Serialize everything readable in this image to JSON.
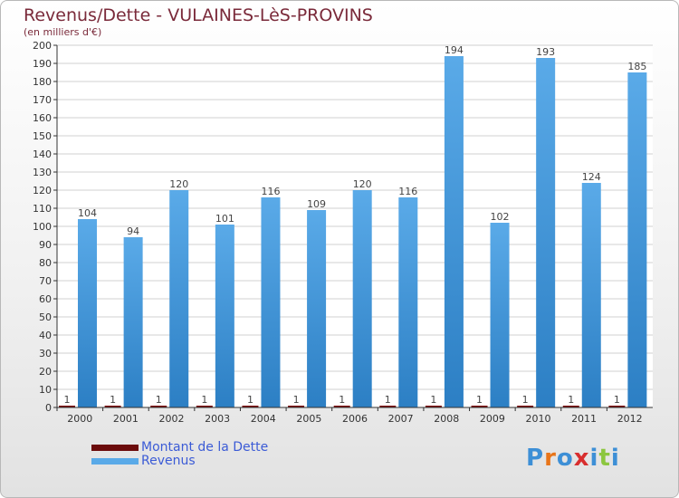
{
  "chart_data": {
    "type": "bar",
    "title": "Revenus/Dette - VULAINES-LèS-PROVINS",
    "subtitle": "(en milliers d'€)",
    "categories": [
      "2000",
      "2001",
      "2002",
      "2003",
      "2004",
      "2005",
      "2006",
      "2007",
      "2008",
      "2009",
      "2010",
      "2011",
      "2012"
    ],
    "series": [
      {
        "name": "Montant de la Dette",
        "color": "#6b0b0b",
        "values": [
          1,
          1,
          1,
          1,
          1,
          1,
          1,
          1,
          1,
          1,
          1,
          1,
          1
        ]
      },
      {
        "name": "Revenus",
        "color": "#5aaae8",
        "values": [
          104,
          94,
          120,
          101,
          116,
          109,
          120,
          116,
          194,
          102,
          193,
          124,
          185
        ]
      }
    ],
    "ylim": [
      0,
      200
    ],
    "yticks": [
      0,
      10,
      20,
      30,
      40,
      50,
      60,
      70,
      80,
      90,
      100,
      110,
      120,
      130,
      140,
      150,
      160,
      170,
      180,
      190,
      200
    ],
    "grid": true,
    "legend": "bottom-left"
  },
  "logo": {
    "text": "Proxiti",
    "letters": [
      "P",
      "r",
      "o",
      "x",
      "i",
      "t",
      "i"
    ],
    "colors": [
      "#3d8fd6",
      "#e8751a",
      "#3d8fd6",
      "#d82e2e",
      "#3d8fd6",
      "#8cc63f",
      "#3d8fd6"
    ]
  }
}
